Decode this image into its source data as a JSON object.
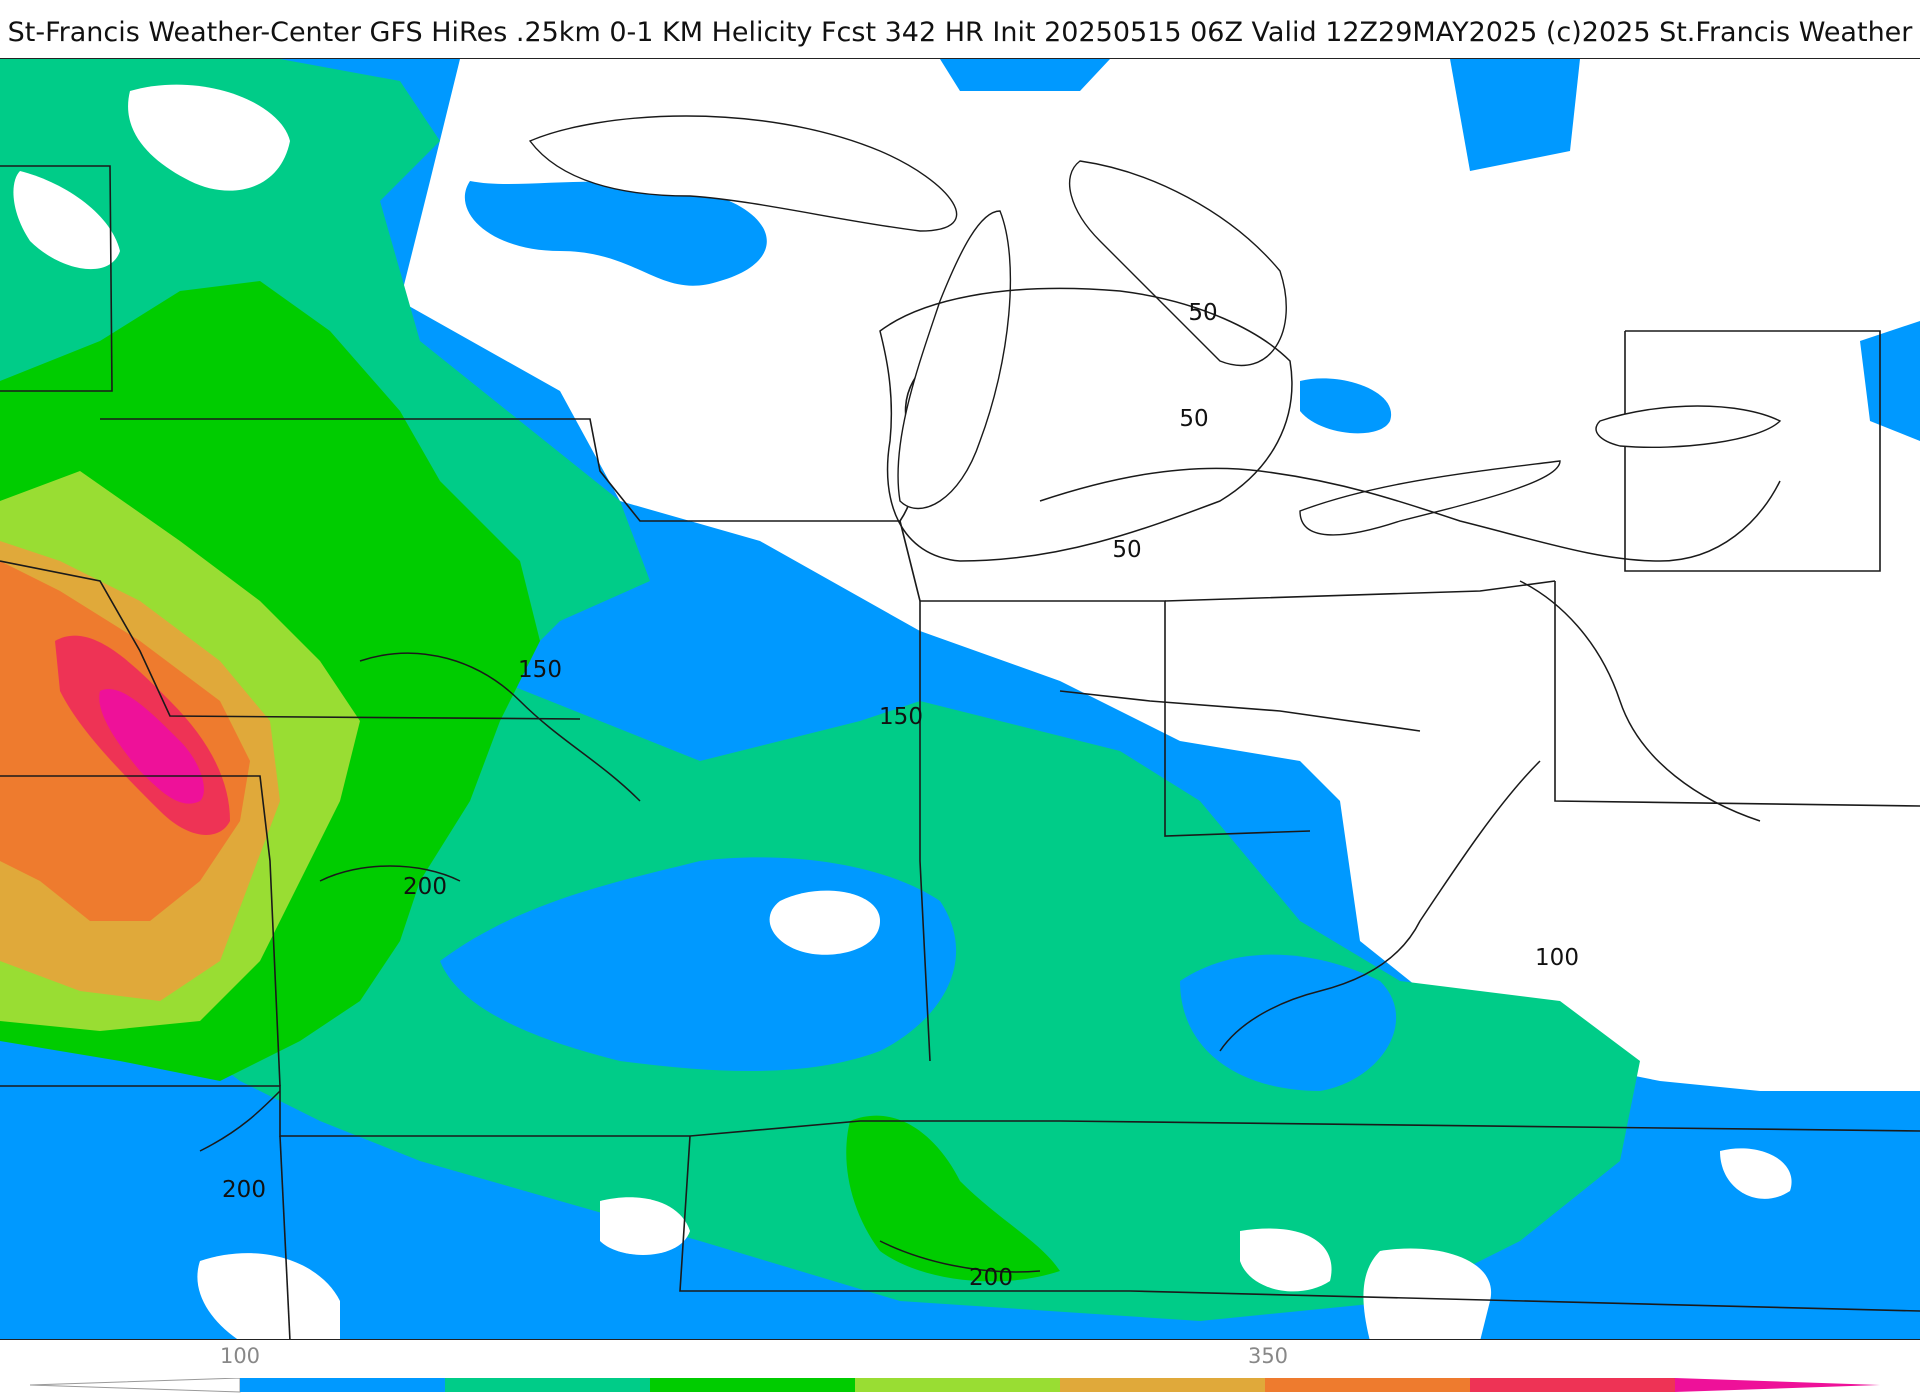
{
  "title": "St-Francis Weather-Center GFS HiRes .25km 0-1 KM Helicity Fcst 342 HR Init 20250515 06Z  Valid 12Z29MAY2025    (c)2025 St.Francis Weather",
  "contour_labels": [
    "50",
    "50",
    "50",
    "150",
    "150",
    "200",
    "200",
    "200",
    "100"
  ],
  "legend": {
    "tick_labels": [
      "100",
      "350"
    ],
    "colors": [
      "#0099ff",
      "#00cc88",
      "#00cc00",
      "#99dd33",
      "#e0a93a",
      "#ee7b2e",
      "#ee3355",
      "#ee1199"
    ]
  },
  "palette": {
    "land": "#ffffff",
    "lake": "#ffffff",
    "border": "#1a1a1a",
    "county": "#cfcfcf"
  }
}
